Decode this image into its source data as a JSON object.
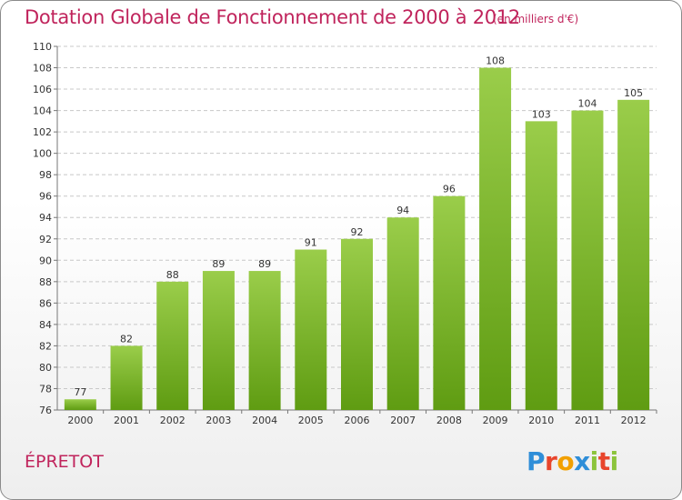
{
  "header": {
    "title": "Dotation Globale de Fonctionnement de 2000 à 2012",
    "subtitle": "(en milliers d'€)"
  },
  "footer": {
    "commune": "ÉPRETOT",
    "logo_text": "Proxiti",
    "logo_colors": [
      "#2f8ed8",
      "#e8452c",
      "#f2a000",
      "#2f8ed8",
      "#8cc43c",
      "#e8452c",
      "#8cc43c"
    ]
  },
  "colors": {
    "bar_light": "#9acd4a",
    "bar_dark": "#5f9c12",
    "text_accent": "#c0245c"
  },
  "chart_data": {
    "type": "bar",
    "title": "Dotation Globale de Fonctionnement de 2000 à 2012",
    "subtitle": "(en milliers d'€)",
    "categories": [
      "2000",
      "2001",
      "2002",
      "2003",
      "2004",
      "2005",
      "2006",
      "2007",
      "2008",
      "2009",
      "2010",
      "2011",
      "2012"
    ],
    "values": [
      77,
      82,
      88,
      89,
      89,
      91,
      92,
      94,
      96,
      108,
      103,
      104,
      105
    ],
    "ylim": [
      76,
      110
    ],
    "yticks": [
      76,
      78,
      80,
      82,
      84,
      86,
      88,
      90,
      92,
      94,
      96,
      98,
      100,
      102,
      104,
      106,
      108,
      110
    ],
    "grid": true,
    "data_labels": true
  }
}
